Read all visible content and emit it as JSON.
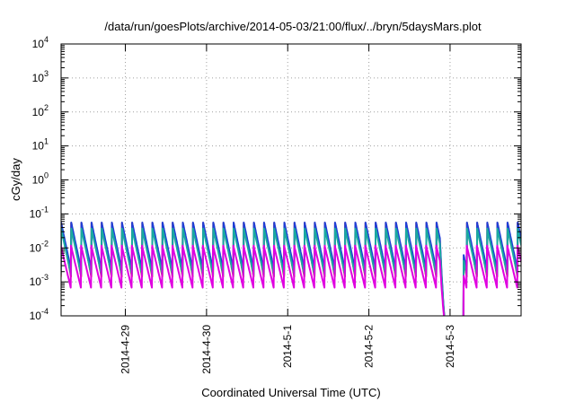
{
  "chart_data": {
    "type": "line",
    "title": "/data/run/goesPlots/archive/2014-05-03/21:00/flux/../bryn/5daysMars.plot",
    "xlabel": "Coordinated Universal Time (UTC)",
    "ylabel": "cGy/day",
    "y_scale": "log",
    "ylim": [
      0.0001,
      10000
    ],
    "xlim": [
      "2014-04-28 05:00",
      "2014-05-03 21:00"
    ],
    "grid": true,
    "x_ticks": [
      {
        "label": "2014-4-29",
        "value": "2014-04-29 00:00"
      },
      {
        "label": "2014-4-30",
        "value": "2014-04-30 00:00"
      },
      {
        "label": "2014-5-1",
        "value": "2014-05-01 00:00"
      },
      {
        "label": "2014-5-2",
        "value": "2014-05-02 00:00"
      },
      {
        "label": "2014-5-3",
        "value": "2014-05-03 00:00"
      }
    ],
    "y_ticks": [
      {
        "base": "10",
        "exp": "-4",
        "value": 0.0001
      },
      {
        "base": "10",
        "exp": "-3",
        "value": 0.001
      },
      {
        "base": "10",
        "exp": "-2",
        "value": 0.01
      },
      {
        "base": "10",
        "exp": "-1",
        "value": 0.1
      },
      {
        "base": "10",
        "exp": "0",
        "value": 1
      },
      {
        "base": "10",
        "exp": "1",
        "value": 10
      },
      {
        "base": "10",
        "exp": "2",
        "value": 100
      },
      {
        "base": "10",
        "exp": "3",
        "value": 1000
      },
      {
        "base": "10",
        "exp": "4",
        "value": 10000
      }
    ],
    "sawtooth_period_hours": 3,
    "series": [
      {
        "color": "#e41a1c",
        "peak": 0.055,
        "trough": 0.0013
      },
      {
        "color": "#1f3fd6",
        "peak": 0.058,
        "trough": 0.0022
      },
      {
        "color": "#1aa9a0",
        "peak": 0.04,
        "trough": 0.0016
      },
      {
        "color": "#e000e0",
        "peak": 0.012,
        "trough": 0.00065
      }
    ]
  }
}
